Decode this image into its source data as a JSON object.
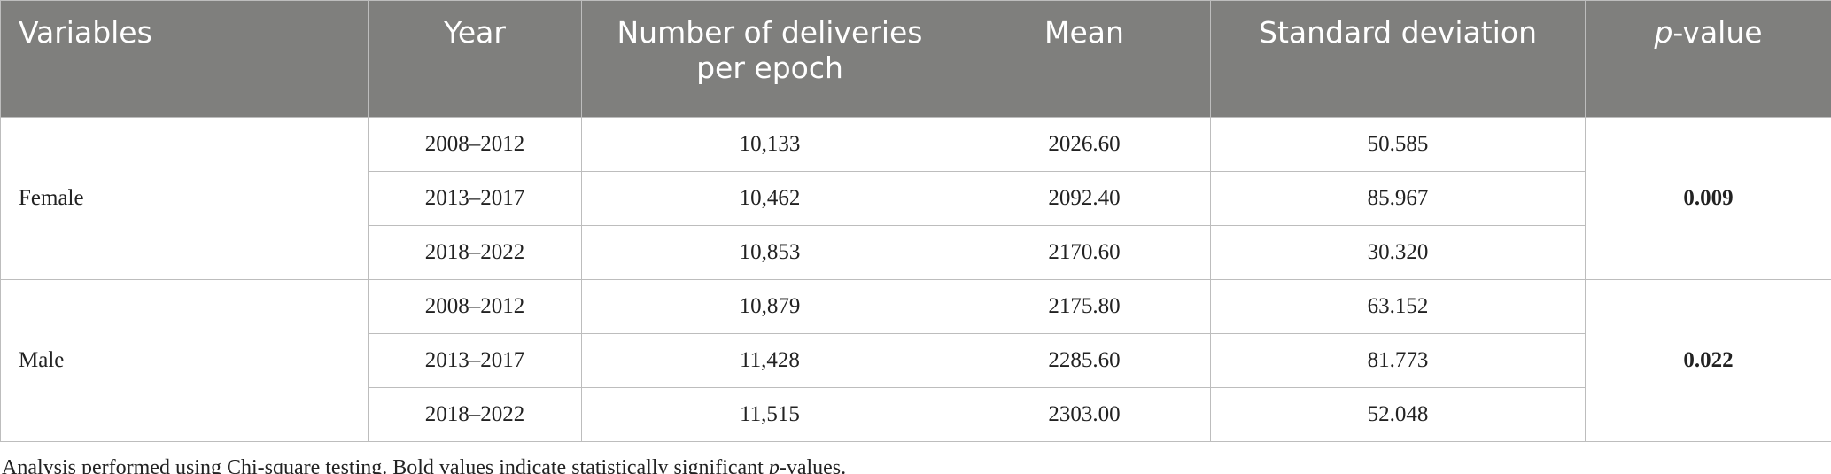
{
  "header": {
    "columns": [
      "Variables",
      "Year",
      "Number of deliveries per epoch",
      "Mean",
      "Standard deviation",
      {
        "italic": "p",
        "rest": "-value"
      }
    ]
  },
  "table": {
    "groups": [
      {
        "variable": "Female",
        "p_value": "0.009",
        "rows": [
          [
            "2008–2012",
            "10,133",
            "2026.60",
            "50.585"
          ],
          [
            "2013–2017",
            "10,462",
            "2092.40",
            "85.967"
          ],
          [
            "2018–2022",
            "10,853",
            "2170.60",
            "30.320"
          ]
        ]
      },
      {
        "variable": "Male",
        "p_value": "0.022",
        "rows": [
          [
            "2008–2012",
            "10,879",
            "2175.80",
            "63.152"
          ],
          [
            "2013–2017",
            "11,428",
            "2285.60",
            "81.773"
          ],
          [
            "2018–2022",
            "11,515",
            "2303.00",
            "52.048"
          ]
        ]
      }
    ]
  },
  "footnote": {
    "before": "Analysis performed using Chi-square testing. Bold values indicate statistically significant ",
    "italic": "p",
    "after": "-values."
  }
}
